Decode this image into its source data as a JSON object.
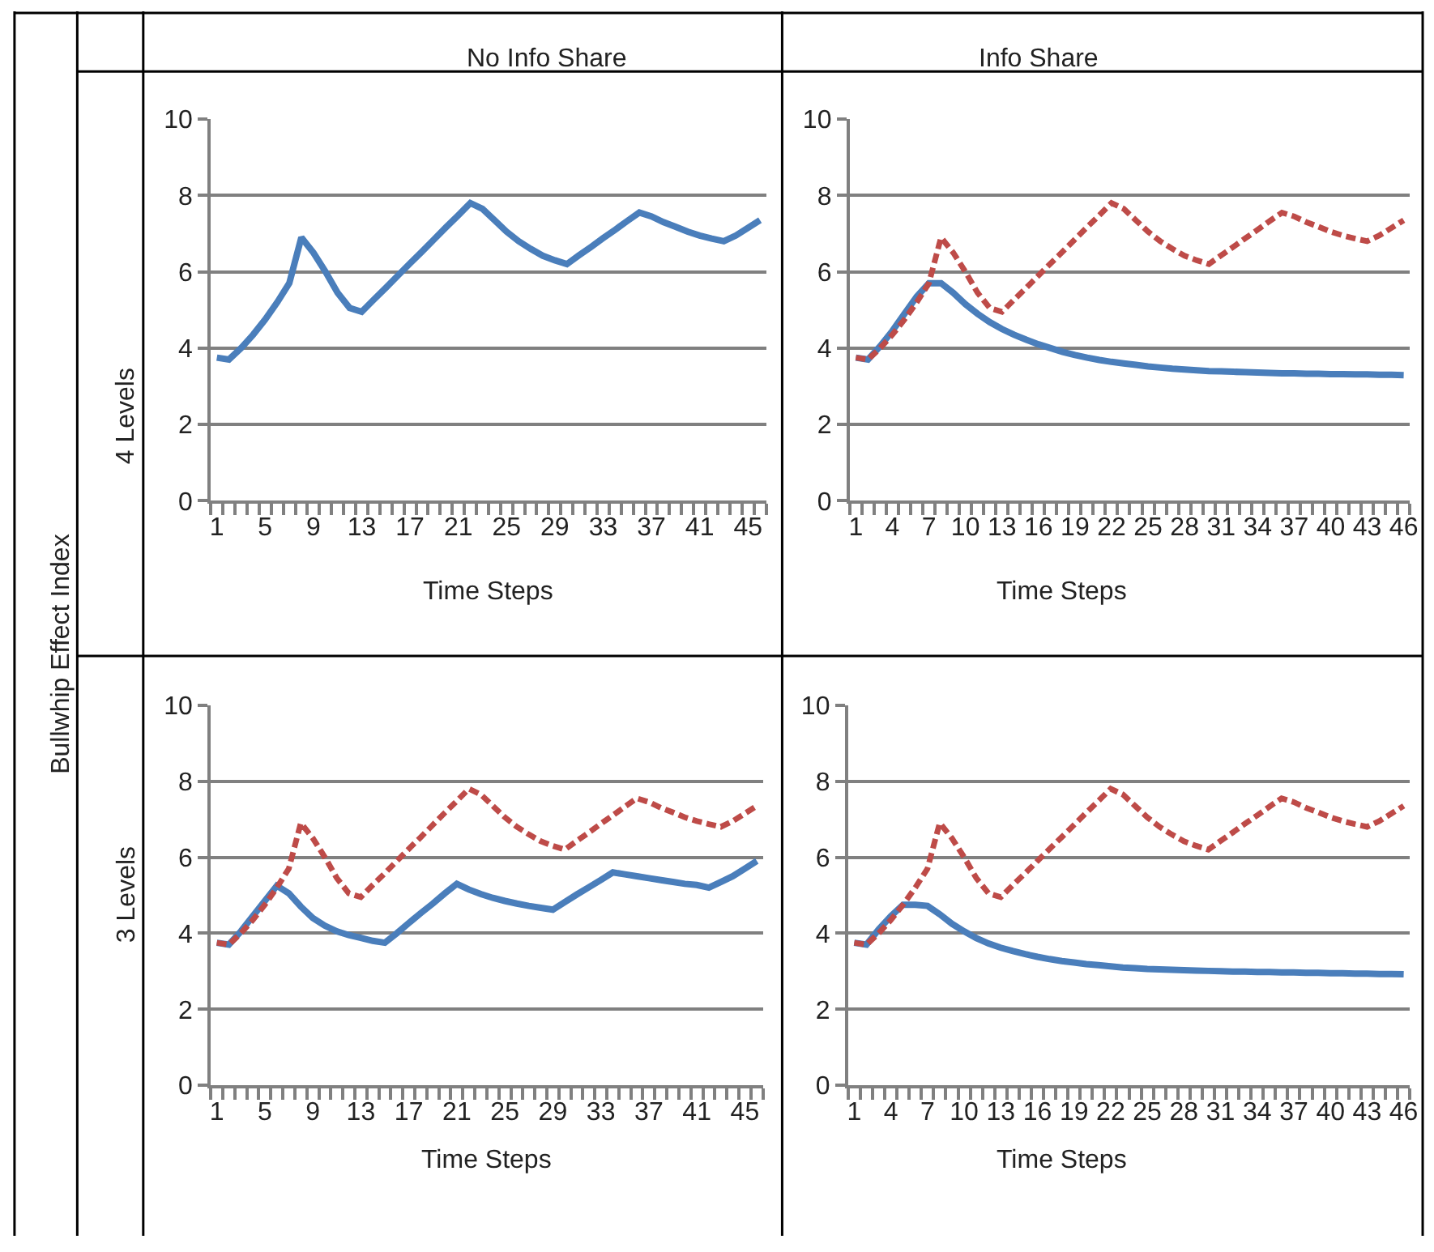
{
  "chart_data": [
    {
      "type": "line",
      "title": "No Info Share",
      "ylabel": "4 Levels",
      "xlabel": "Time Steps",
      "annotations": [
        "Bullwhip Effect Index"
      ],
      "categories": [
        "1",
        null,
        null,
        null,
        "5",
        null,
        null,
        null,
        "9",
        null,
        null,
        null,
        "13",
        null,
        null,
        null,
        "17",
        null,
        null,
        null,
        "21",
        null,
        null,
        null,
        "25",
        null,
        null,
        null,
        "29",
        null,
        null,
        null,
        "33",
        null,
        null,
        null,
        "37",
        null,
        null,
        null,
        "41",
        null,
        null,
        null,
        "45",
        null
      ],
      "ylim": [
        0,
        10
      ],
      "yticks": [
        0,
        2,
        4,
        6,
        8,
        10
      ],
      "grid": "y",
      "series": [
        {
          "color": "#4a7ebb",
          "line_style": "solid",
          "values": [
            3.75,
            3.7,
            4.0,
            4.35,
            4.75,
            5.2,
            5.7,
            6.9,
            6.5,
            6.0,
            5.45,
            5.05,
            4.95,
            5.27,
            5.58,
            5.9,
            6.22,
            6.53,
            6.85,
            7.17,
            7.48,
            7.8,
            7.65,
            7.35,
            7.05,
            6.8,
            6.6,
            6.42,
            6.3,
            6.2,
            6.43,
            6.65,
            6.88,
            7.1,
            7.33,
            7.55,
            7.45,
            7.3,
            7.18,
            7.05,
            6.95,
            6.87,
            6.8,
            6.95,
            7.15,
            7.35
          ]
        }
      ]
    },
    {
      "type": "line",
      "title": "Info Share",
      "xlabel": "Time Steps",
      "categories": [
        "1",
        null,
        null,
        "4",
        null,
        null,
        "7",
        null,
        null,
        "10",
        null,
        null,
        "13",
        null,
        null,
        "16",
        null,
        null,
        "19",
        null,
        null,
        "22",
        null,
        null,
        "25",
        null,
        null,
        "28",
        null,
        null,
        "31",
        null,
        null,
        "34",
        null,
        null,
        "37",
        null,
        null,
        "40",
        null,
        null,
        "43",
        null,
        null,
        "46"
      ],
      "ylim": [
        0,
        10
      ],
      "yticks": [
        0,
        2,
        4,
        6,
        8,
        10
      ],
      "grid": "y",
      "series": [
        {
          "color": "#be4b48",
          "line_style": "dashed",
          "values": [
            3.75,
            3.7,
            4.0,
            4.35,
            4.75,
            5.2,
            5.7,
            6.9,
            6.5,
            6.0,
            5.45,
            5.05,
            4.95,
            5.27,
            5.58,
            5.9,
            6.22,
            6.53,
            6.85,
            7.17,
            7.48,
            7.8,
            7.65,
            7.35,
            7.05,
            6.8,
            6.6,
            6.42,
            6.3,
            6.2,
            6.43,
            6.65,
            6.88,
            7.1,
            7.33,
            7.55,
            7.45,
            7.3,
            7.18,
            7.05,
            6.95,
            6.87,
            6.8,
            6.95,
            7.15,
            7.35
          ]
        },
        {
          "color": "#4a7ebb",
          "line_style": "solid",
          "values": [
            3.75,
            3.7,
            4.05,
            4.45,
            4.9,
            5.35,
            5.7,
            5.7,
            5.45,
            5.15,
            4.9,
            4.68,
            4.5,
            4.35,
            4.22,
            4.1,
            4.0,
            3.9,
            3.82,
            3.75,
            3.69,
            3.64,
            3.6,
            3.56,
            3.52,
            3.49,
            3.46,
            3.44,
            3.42,
            3.4,
            3.39,
            3.38,
            3.37,
            3.36,
            3.35,
            3.34,
            3.34,
            3.33,
            3.33,
            3.32,
            3.32,
            3.31,
            3.31,
            3.3,
            3.3,
            3.29
          ]
        }
      ]
    },
    {
      "type": "line",
      "ylabel": "3 Levels",
      "xlabel": "Time Steps",
      "categories": [
        "1",
        null,
        null,
        null,
        "5",
        null,
        null,
        null,
        "9",
        null,
        null,
        null,
        "13",
        null,
        null,
        null,
        "17",
        null,
        null,
        null,
        "21",
        null,
        null,
        null,
        "25",
        null,
        null,
        null,
        "29",
        null,
        null,
        null,
        "33",
        null,
        null,
        null,
        "37",
        null,
        null,
        null,
        "41",
        null,
        null,
        null,
        "45",
        null
      ],
      "ylim": [
        0,
        10
      ],
      "yticks": [
        0,
        2,
        4,
        6,
        8,
        10
      ],
      "grid": "y",
      "series": [
        {
          "color": "#be4b48",
          "line_style": "dashed",
          "values": [
            3.75,
            3.7,
            4.0,
            4.35,
            4.75,
            5.2,
            5.7,
            6.9,
            6.5,
            6.0,
            5.45,
            5.05,
            4.95,
            5.27,
            5.58,
            5.9,
            6.22,
            6.53,
            6.85,
            7.17,
            7.48,
            7.8,
            7.65,
            7.35,
            7.05,
            6.8,
            6.6,
            6.42,
            6.3,
            6.2,
            6.43,
            6.65,
            6.88,
            7.1,
            7.33,
            7.55,
            7.45,
            7.3,
            7.18,
            7.05,
            6.95,
            6.87,
            6.8,
            6.95,
            7.15,
            7.35
          ]
        },
        {
          "color": "#4a7ebb",
          "line_style": "solid",
          "values": [
            3.75,
            3.7,
            4.05,
            4.45,
            4.85,
            5.25,
            5.05,
            4.7,
            4.4,
            4.2,
            4.05,
            3.95,
            3.88,
            3.8,
            3.75,
            4.0,
            4.27,
            4.53,
            4.78,
            5.05,
            5.3,
            5.15,
            5.03,
            4.93,
            4.85,
            4.78,
            4.72,
            4.67,
            4.62,
            4.82,
            5.02,
            5.21,
            5.4,
            5.6,
            5.55,
            5.5,
            5.45,
            5.4,
            5.35,
            5.3,
            5.27,
            5.2,
            5.35,
            5.5,
            5.7,
            5.9
          ]
        }
      ]
    },
    {
      "type": "line",
      "xlabel": "Time Steps",
      "categories": [
        "1",
        null,
        null,
        "4",
        null,
        null,
        "7",
        null,
        null,
        "10",
        null,
        null,
        "13",
        null,
        null,
        "16",
        null,
        null,
        "19",
        null,
        null,
        "22",
        null,
        null,
        "25",
        null,
        null,
        "28",
        null,
        null,
        "31",
        null,
        null,
        "34",
        null,
        null,
        "37",
        null,
        null,
        "40",
        null,
        null,
        "43",
        null,
        null,
        "46"
      ],
      "ylim": [
        0,
        10
      ],
      "yticks": [
        0,
        2,
        4,
        6,
        8,
        10
      ],
      "grid": "y",
      "series": [
        {
          "color": "#be4b48",
          "line_style": "dashed",
          "values": [
            3.75,
            3.7,
            4.0,
            4.35,
            4.75,
            5.2,
            5.7,
            6.9,
            6.5,
            6.0,
            5.45,
            5.05,
            4.95,
            5.27,
            5.58,
            5.9,
            6.22,
            6.53,
            6.85,
            7.17,
            7.48,
            7.8,
            7.65,
            7.35,
            7.05,
            6.8,
            6.6,
            6.42,
            6.3,
            6.2,
            6.43,
            6.65,
            6.88,
            7.1,
            7.33,
            7.55,
            7.45,
            7.3,
            7.18,
            7.05,
            6.95,
            6.87,
            6.8,
            6.95,
            7.15,
            7.35
          ]
        },
        {
          "color": "#4a7ebb",
          "line_style": "solid",
          "values": [
            3.75,
            3.7,
            4.1,
            4.45,
            4.75,
            4.75,
            4.72,
            4.5,
            4.25,
            4.05,
            3.87,
            3.73,
            3.62,
            3.53,
            3.45,
            3.38,
            3.32,
            3.27,
            3.23,
            3.19,
            3.16,
            3.13,
            3.1,
            3.08,
            3.06,
            3.05,
            3.04,
            3.03,
            3.02,
            3.01,
            3.0,
            2.99,
            2.99,
            2.98,
            2.98,
            2.97,
            2.97,
            2.96,
            2.96,
            2.95,
            2.95,
            2.94,
            2.94,
            2.93,
            2.93,
            2.92
          ]
        }
      ]
    }
  ]
}
